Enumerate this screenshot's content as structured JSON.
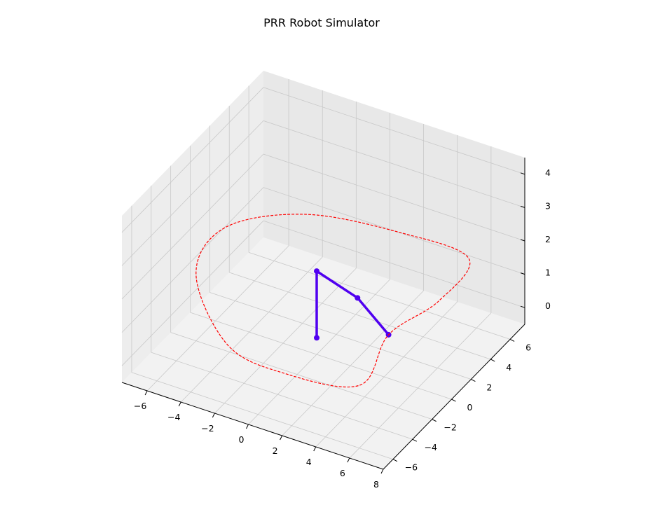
{
  "chart_data": {
    "type": "line",
    "title": "PRR Robot Simulator",
    "projection": "3d",
    "grid": true,
    "xlim": [
      -7.5,
      8
    ],
    "ylim": [
      -7,
      7.5
    ],
    "zlim": [
      -0.5,
      4.5
    ],
    "x_ticks": [
      -6,
      -4,
      -2,
      0,
      2,
      4,
      6,
      8
    ],
    "y_ticks": [
      -6,
      -4,
      -2,
      0,
      2,
      4,
      6
    ],
    "z_ticks": [
      0,
      1,
      2,
      3,
      4
    ],
    "x_tick_labels": [
      "−6",
      "−4",
      "−2",
      "0",
      "2",
      "4",
      "6",
      "8"
    ],
    "y_tick_labels": [
      "−6",
      "−4",
      "−2",
      "0",
      "2",
      "4",
      "6"
    ],
    "z_tick_labels": [
      "0",
      "1",
      "2",
      "3",
      "4"
    ],
    "series": [
      {
        "kind": "robot-arm",
        "color": "#5000f0",
        "points": [
          {
            "x": 0.0,
            "y": 0.0,
            "z": 0.0
          },
          {
            "x": 0.0,
            "y": 0.0,
            "z": 2.0
          },
          {
            "x": 3.0,
            "y": -1.0,
            "z": 2.0
          },
          {
            "x": 6.0,
            "y": -3.0,
            "z": 2.0
          }
        ]
      },
      {
        "kind": "trajectory",
        "color": "#ff0000",
        "style": "dashed",
        "points": [
          {
            "x": 4.0,
            "y": -2.5,
            "z": 0.0
          },
          {
            "x": 6.0,
            "y": -3.0,
            "z": 2.0
          },
          {
            "x": 7.5,
            "y": -0.5,
            "z": 2.5
          },
          {
            "x": 7.0,
            "y": 3.5,
            "z": 2.5
          },
          {
            "x": 2.0,
            "y": 5.0,
            "z": 2.0
          },
          {
            "x": -3.0,
            "y": 4.0,
            "z": 2.0
          },
          {
            "x": -6.0,
            "y": 1.0,
            "z": 2.0
          },
          {
            "x": -6.0,
            "y": -2.0,
            "z": 1.5
          },
          {
            "x": -3.0,
            "y": -4.0,
            "z": 0.5
          },
          {
            "x": 0.0,
            "y": -3.5,
            "z": 0.0
          }
        ]
      }
    ]
  },
  "colors": {
    "pane": "#f2f2f2",
    "grid": "#c8c8c8",
    "axis": "#000000"
  }
}
